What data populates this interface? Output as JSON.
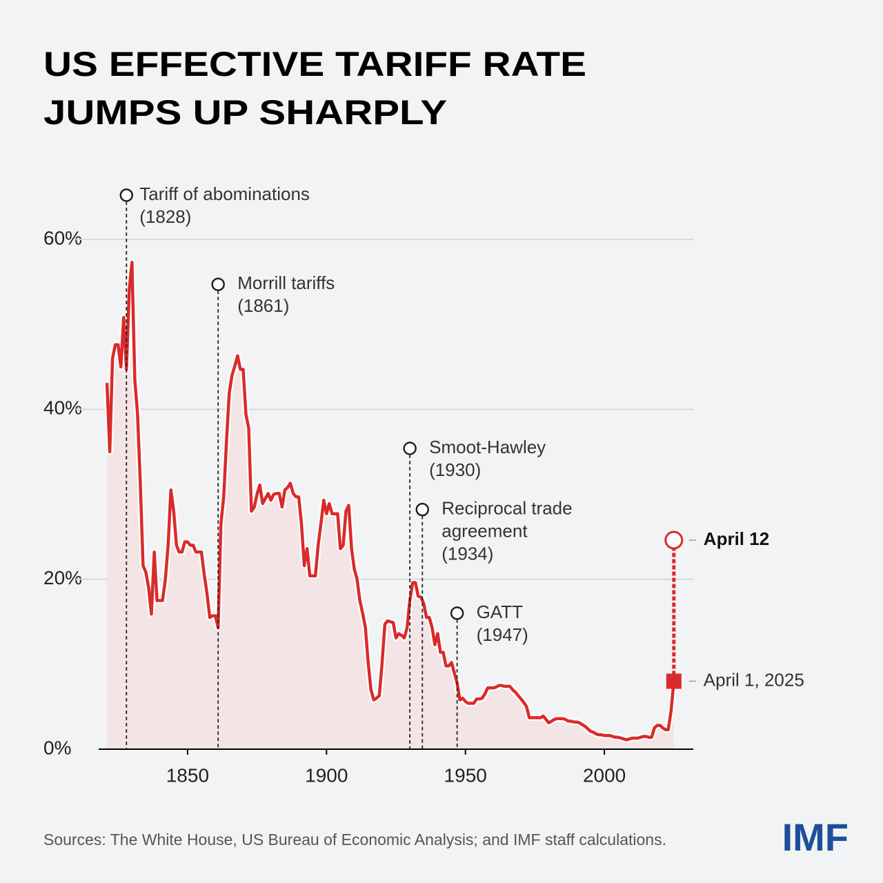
{
  "chart_data": {
    "type": "line",
    "title_lines": [
      "US EFFECTIVE TARIFF RATE",
      "JUMPS UP SHARPLY"
    ],
    "source": "Sources: The White House, US Bureau of Economic Analysis; and IMF staff calculations.",
    "logo": "IMF",
    "xlim": [
      1818,
      2032
    ],
    "xticks": [
      1850,
      1900,
      1950,
      2000
    ],
    "ylim": [
      0,
      60
    ],
    "yticks": [
      {
        "value": 0,
        "label": "0%"
      },
      {
        "value": 20,
        "label": "20%"
      },
      {
        "value": 40,
        "label": "40%"
      },
      {
        "value": 60,
        "label": "60%"
      }
    ],
    "grid": true,
    "x": [
      1821,
      1822,
      1823,
      1824,
      1825,
      1826,
      1827,
      1828,
      1829,
      1830,
      1831,
      1832,
      1833,
      1834,
      1835,
      1836,
      1837,
      1838,
      1839,
      1840,
      1841,
      1842,
      1843,
      1844,
      1845,
      1846,
      1847,
      1848,
      1849,
      1850,
      1851,
      1852,
      1853,
      1854,
      1855,
      1856,
      1857,
      1858,
      1859,
      1860,
      1861,
      1862,
      1863,
      1864,
      1865,
      1866,
      1867,
      1868,
      1869,
      1870,
      1871,
      1872,
      1873,
      1874,
      1875,
      1876,
      1877,
      1878,
      1879,
      1880,
      1881,
      1882,
      1883,
      1884,
      1885,
      1886,
      1887,
      1888,
      1889,
      1890,
      1891,
      1892,
      1893,
      1894,
      1895,
      1896,
      1897,
      1898,
      1899,
      1900,
      1901,
      1902,
      1903,
      1904,
      1905,
      1906,
      1907,
      1908,
      1909,
      1910,
      1911,
      1912,
      1913,
      1914,
      1915,
      1916,
      1917,
      1918,
      1919,
      1920,
      1921,
      1922,
      1923,
      1924,
      1925,
      1926,
      1927,
      1928,
      1929,
      1930,
      1931,
      1932,
      1933,
      1934,
      1935,
      1936,
      1937,
      1938,
      1939,
      1940,
      1941,
      1942,
      1943,
      1944,
      1945,
      1946,
      1947,
      1948,
      1949,
      1950,
      1951,
      1952,
      1953,
      1954,
      1955,
      1956,
      1957,
      1958,
      1959,
      1960,
      1961,
      1962,
      1963,
      1964,
      1965,
      1966,
      1967,
      1968,
      1969,
      1970,
      1971,
      1972,
      1973,
      1974,
      1975,
      1976,
      1977,
      1978,
      1979,
      1980,
      1981,
      1982,
      1983,
      1984,
      1985,
      1986,
      1987,
      1988,
      1989,
      1990,
      1991,
      1992,
      1993,
      1994,
      1995,
      1996,
      1997,
      1998,
      1999,
      2000,
      2001,
      2002,
      2003,
      2004,
      2005,
      2006,
      2007,
      2008,
      2009,
      2010,
      2011,
      2012,
      2013,
      2014,
      2015,
      2016,
      2017,
      2018,
      2019,
      2020,
      2021,
      2022,
      2023,
      2024,
      2025
    ],
    "series": [
      {
        "color": "#d92b2b",
        "values": [
          43.1,
          35,
          46,
          47.6,
          47.6,
          45,
          50.8,
          44.7,
          54,
          57.3,
          43.5,
          39.4,
          31.3,
          21.6,
          20.8,
          19,
          15.9,
          23.2,
          17.5,
          17.5,
          17.5,
          20,
          24,
          30.5,
          28,
          24,
          23.2,
          23.2,
          24.4,
          24.4,
          24,
          24,
          23.2,
          23.2,
          23.2,
          20.5,
          18.3,
          15.5,
          15.7,
          15.7,
          14.3,
          26.5,
          29.7,
          36.2,
          41.9,
          44,
          45.1,
          46.3,
          44.7,
          44.7,
          39.4,
          37.8,
          28,
          28.5,
          30,
          31.1,
          28.9,
          29.5,
          30.1,
          29.3,
          30,
          30.1,
          30.1,
          28.5,
          30.5,
          30.8,
          31.3,
          30.1,
          29.7,
          29.7,
          26.5,
          21.6,
          23.6,
          20.4,
          20.4,
          20.4,
          24,
          26.5,
          29.3,
          27.7,
          28.9,
          27.7,
          27.7,
          27.7,
          23.6,
          24,
          28,
          28.7,
          23.6,
          21.2,
          20,
          17.5,
          16,
          14.3,
          10.2,
          7,
          5.8,
          6,
          6.3,
          10.2,
          14.7,
          15.1,
          15,
          14.9,
          13.1,
          13.6,
          13.4,
          13.1,
          14.3,
          17.5,
          19.6,
          19.6,
          18,
          17.9,
          17.1,
          15.5,
          15.5,
          14.3,
          12.3,
          13.6,
          11.4,
          11.4,
          9.8,
          9.8,
          10.2,
          9,
          7.8,
          5.8,
          6,
          5.6,
          5.4,
          5.4,
          5.4,
          5.9,
          5.9,
          6,
          6.5,
          7.2,
          7.2,
          7.2,
          7.3,
          7.5,
          7.5,
          7.4,
          7.4,
          7.4,
          7,
          6.7,
          6.3,
          5.9,
          5.5,
          5,
          3.7,
          3.7,
          3.7,
          3.7,
          3.7,
          3.9,
          3.5,
          3.1,
          3.3,
          3.5,
          3.6,
          3.6,
          3.6,
          3.5,
          3.3,
          3.3,
          3.2,
          3.2,
          3.1,
          2.9,
          2.7,
          2.4,
          2.1,
          2,
          1.8,
          1.7,
          1.7,
          1.6,
          1.6,
          1.6,
          1.5,
          1.4,
          1.4,
          1.3,
          1.2,
          1.1,
          1.2,
          1.3,
          1.3,
          1.3,
          1.4,
          1.5,
          1.5,
          1.4,
          1.4,
          2.5,
          2.8,
          2.8,
          2.5,
          2.3,
          2.3,
          4.5,
          8
        ]
      }
    ],
    "annotations": [
      {
        "lines": [
          "Tariff of abominations",
          "(1828)"
        ],
        "x": 1828,
        "y": 65.2
      },
      {
        "lines": [
          "Morrill tariffs",
          "(1861)"
        ],
        "x": 1861,
        "y": 54.7
      },
      {
        "lines": [
          "Smoot-Hawley",
          "(1930)"
        ],
        "x": 1930,
        "y": 35.4
      },
      {
        "lines": [
          "Reciprocal trade",
          "agreement",
          "(1934)"
        ],
        "x": 1934.5,
        "y": 28.2
      },
      {
        "lines": [
          "GATT",
          "(1947)"
        ],
        "x": 1947,
        "y": 16
      }
    ],
    "markers": [
      {
        "label": "April 1, 2025",
        "x": 2025,
        "value": 8,
        "shape": "square"
      },
      {
        "label": "April 12",
        "x": 2025,
        "value": 24.6,
        "shape": "circle"
      }
    ]
  }
}
